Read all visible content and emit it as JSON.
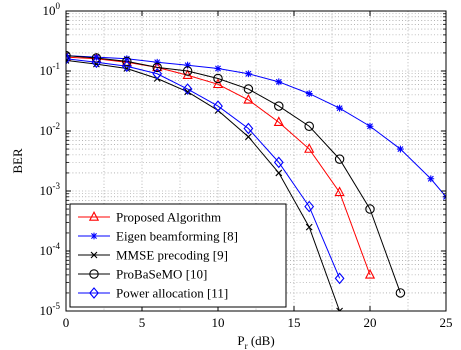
{
  "chart_data": {
    "type": "line",
    "title": "",
    "xlabel": "P",
    "xlabel_sub": "r",
    "xlabel_unit": " (dB)",
    "ylabel": "BER",
    "xscale": "linear",
    "yscale": "log",
    "xlim": [
      0,
      25
    ],
    "ylim": [
      1e-05,
      1
    ],
    "grid": true,
    "legend_position": "bottom-left",
    "x_ticks": [
      0,
      5,
      10,
      15,
      20,
      25
    ],
    "x_tick_labels": [
      "0",
      "5",
      "10",
      "15",
      "20",
      "25"
    ],
    "y_ticks": [
      1,
      0.1,
      0.01,
      0.001,
      0.0001,
      1e-05
    ],
    "y_tick_base": "10",
    "y_tick_exponents": [
      "0",
      "-1",
      "-2",
      "-3",
      "-4",
      "-5"
    ],
    "series": [
      {
        "name": "Proposed Algorithm",
        "color": "#ff0000",
        "marker": "triangle",
        "x": [
          0,
          2,
          4,
          6,
          8,
          10,
          12,
          14,
          16,
          18,
          20
        ],
        "y": [
          0.17,
          0.16,
          0.14,
          0.115,
          0.085,
          0.06,
          0.033,
          0.014,
          0.005,
          0.00095,
          4e-05
        ]
      },
      {
        "name": "Eigen beamforming [8]",
        "color": "#0000ff",
        "marker": "star",
        "x": [
          0,
          2,
          4,
          6,
          8,
          10,
          12,
          14,
          16,
          18,
          20,
          22,
          24,
          25
        ],
        "y": [
          0.18,
          0.17,
          0.16,
          0.14,
          0.125,
          0.11,
          0.09,
          0.066,
          0.042,
          0.024,
          0.012,
          0.005,
          0.0016,
          0.0008
        ]
      },
      {
        "name": "MMSE precoding [9]",
        "color": "#000000",
        "marker": "x",
        "x": [
          0,
          2,
          4,
          6,
          8,
          10,
          12,
          14,
          16,
          18
        ],
        "y": [
          0.15,
          0.13,
          0.11,
          0.075,
          0.045,
          0.022,
          0.008,
          0.002,
          0.00025,
          1e-05
        ]
      },
      {
        "name": "ProBaSeMO [10]",
        "color": "#000000",
        "marker": "circle",
        "x": [
          0,
          2,
          4,
          6,
          8,
          10,
          12,
          14,
          16,
          18,
          20,
          22
        ],
        "y": [
          0.18,
          0.165,
          0.145,
          0.115,
          0.1,
          0.075,
          0.05,
          0.026,
          0.012,
          0.0034,
          0.0005,
          2e-05
        ]
      },
      {
        "name": "Power allocation [11]",
        "color": "#0000ff",
        "marker": "diamond",
        "x": [
          0,
          2,
          4,
          6,
          8,
          10,
          12,
          14,
          16,
          18
        ],
        "y": [
          0.16,
          0.14,
          0.12,
          0.09,
          0.05,
          0.026,
          0.011,
          0.003,
          0.00055,
          3.5e-05
        ]
      }
    ]
  }
}
